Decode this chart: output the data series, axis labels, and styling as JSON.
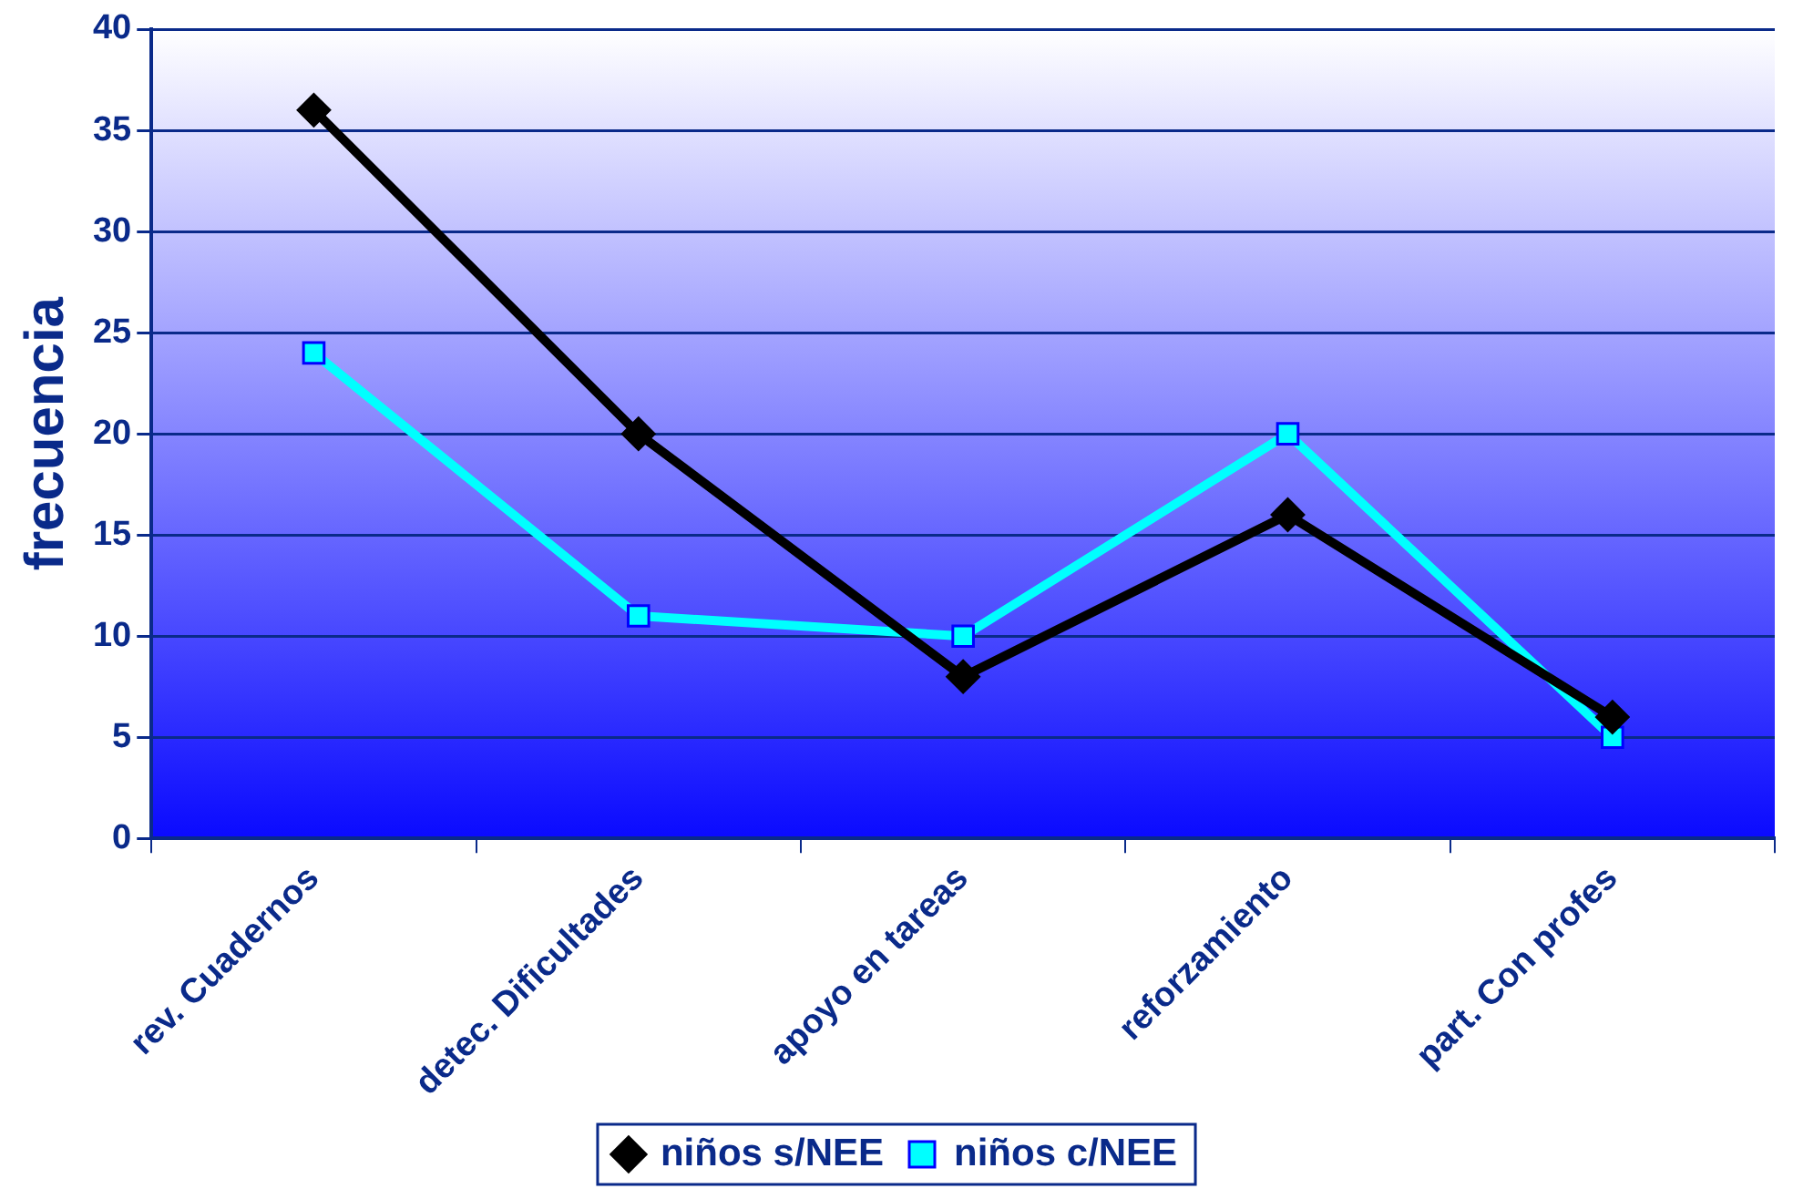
{
  "chart_data": {
    "type": "line",
    "ylabel": "frecuencia",
    "categories": [
      "rev. Cuadernos",
      "detec. Dificultades",
      "apoyo en tareas",
      "reforzamiento",
      "part. Con profes"
    ],
    "series": [
      {
        "name": "niños s/NEE",
        "color": "#000000",
        "marker": "diamond",
        "values": [
          36,
          20,
          8,
          16,
          6
        ]
      },
      {
        "name": "niños c/NEE",
        "color": "#00ffff",
        "marker": "square",
        "values": [
          24,
          11,
          10,
          20,
          5
        ]
      }
    ],
    "ylim": [
      0,
      40
    ],
    "yticks": [
      0,
      5,
      10,
      15,
      20,
      25,
      30,
      35,
      40
    ],
    "grid": "y",
    "legend": "bottom"
  }
}
